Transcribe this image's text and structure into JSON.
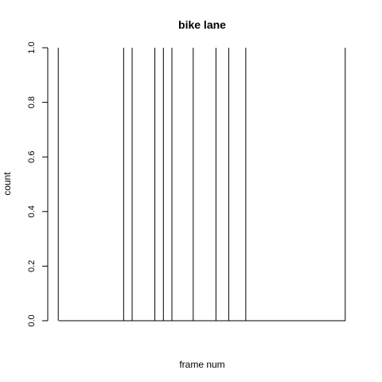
{
  "chart_data": {
    "type": "histogram-lines",
    "title": "bike lane",
    "xlabel": "frame num",
    "ylabel": "count",
    "ylim": [
      0,
      1.0
    ],
    "y_ticks": [
      "0.0",
      "0.2",
      "0.4",
      "0.6",
      "0.8",
      "1.0"
    ],
    "x_axis_visible": false,
    "x": [
      0,
      23,
      26,
      34,
      37,
      40,
      47.5,
      55.5,
      60,
      66,
      101
    ],
    "values": [
      1,
      1,
      1,
      1,
      1,
      1,
      1,
      1,
      1,
      1,
      1
    ],
    "xlim": [
      -3.7,
      104.7
    ],
    "grid": false,
    "legend": "none"
  }
}
